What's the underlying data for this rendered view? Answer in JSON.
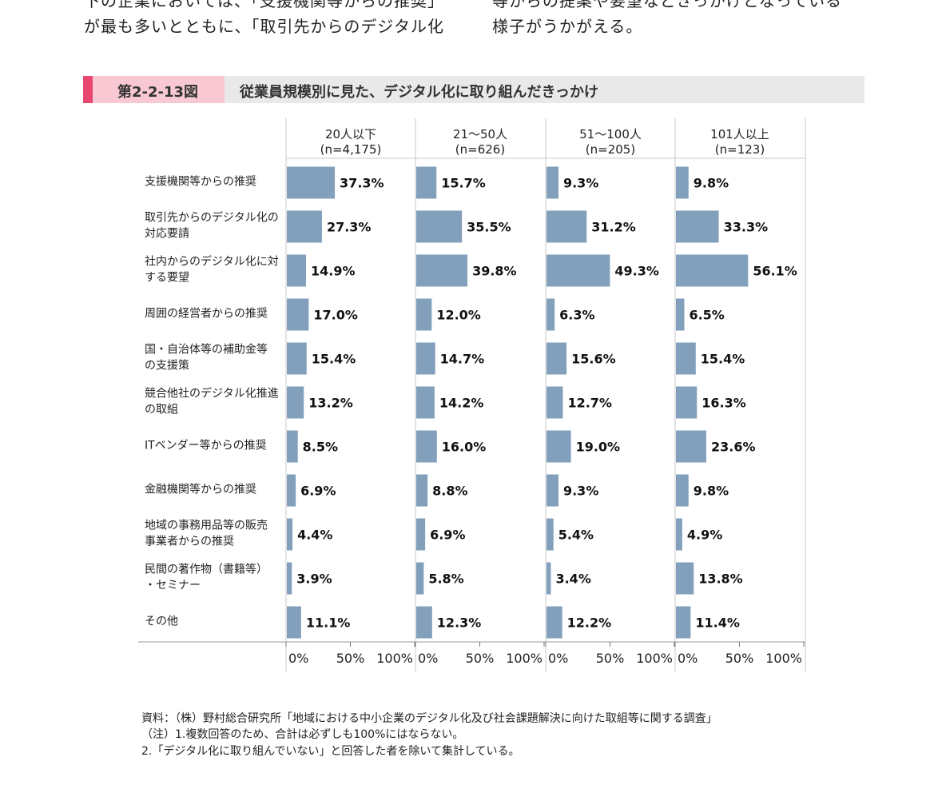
{
  "intro": {
    "left_line1": "下の企業においては、「支援機関等からの推奨」",
    "left_line2": "が最も多いとともに、「取引先からのデジタル化",
    "right_line1": "等からの提案や要望などきっかけとなっている",
    "right_line2": "様子がうかがえる。"
  },
  "figure": {
    "number": "第2-2-13図",
    "title": "従業員規模別に見た、デジタル化に取り組んだきっかけ"
  },
  "chart_data": {
    "type": "bar",
    "orientation": "horizontal",
    "value_unit": "%",
    "xlim": [
      0,
      100
    ],
    "x_ticks": [
      "0%",
      "50%",
      "100%"
    ],
    "bar_color": "#82a0bc",
    "categories": [
      "支援機関等からの推奨",
      "取引先からのデジタル化の対応要請",
      "社内からのデジタル化に対する要望",
      "周囲の経営者からの推奨",
      "国・自治体等の補助金等の支援策",
      "競合他社のデジタル化推進の取組",
      "ITベンダー等からの推奨",
      "金融機関等からの推奨",
      "地域の事務用品等の販売事業者からの推奨",
      "民間の著作物（書籍等）・セミナー",
      "その他"
    ],
    "category_lines": [
      [
        "支援機関等からの推奨"
      ],
      [
        "取引先からのデジタル化の",
        "対応要請"
      ],
      [
        "社内からのデジタル化に対",
        "する要望"
      ],
      [
        "周囲の経営者からの推奨"
      ],
      [
        "国・自治体等の補助金等",
        "の支援策"
      ],
      [
        "競合他社のデジタル化推進",
        "の取組"
      ],
      [
        "ITベンダー等からの推奨"
      ],
      [
        "金融機関等からの推奨"
      ],
      [
        "地域の事務用品等の販売",
        "事業者からの推奨"
      ],
      [
        "民間の著作物（書籍等）",
        "・セミナー"
      ],
      [
        "その他"
      ]
    ],
    "series": [
      {
        "name": "20人以下",
        "n": "(n=4,175)",
        "values": [
          37.3,
          27.3,
          14.9,
          17.0,
          15.4,
          13.2,
          8.5,
          6.9,
          4.4,
          3.9,
          11.1
        ]
      },
      {
        "name": "21～50人",
        "n": "(n=626)",
        "values": [
          15.7,
          35.5,
          39.8,
          12.0,
          14.7,
          14.2,
          16.0,
          8.8,
          6.9,
          5.8,
          12.3
        ]
      },
      {
        "name": "51～100人",
        "n": "(n=205)",
        "values": [
          9.3,
          31.2,
          49.3,
          6.3,
          15.6,
          12.7,
          19.0,
          9.3,
          5.4,
          3.4,
          12.2
        ]
      },
      {
        "name": "101人以上",
        "n": "(n=123)",
        "values": [
          9.8,
          33.3,
          56.1,
          6.5,
          15.4,
          16.3,
          23.6,
          9.8,
          4.9,
          13.8,
          11.4
        ]
      }
    ]
  },
  "notes": {
    "source": "資料：（株）野村総合研究所「地域における中小企業のデジタル化及び社会課題解決に向けた取組等に関する調査」",
    "note1": "（注）1.複数回答のため、合計は必ずしも100%にはならない。",
    "note2": "2.「デジタル化に取り組んでいない」と回答した者を除いて集計している。"
  }
}
